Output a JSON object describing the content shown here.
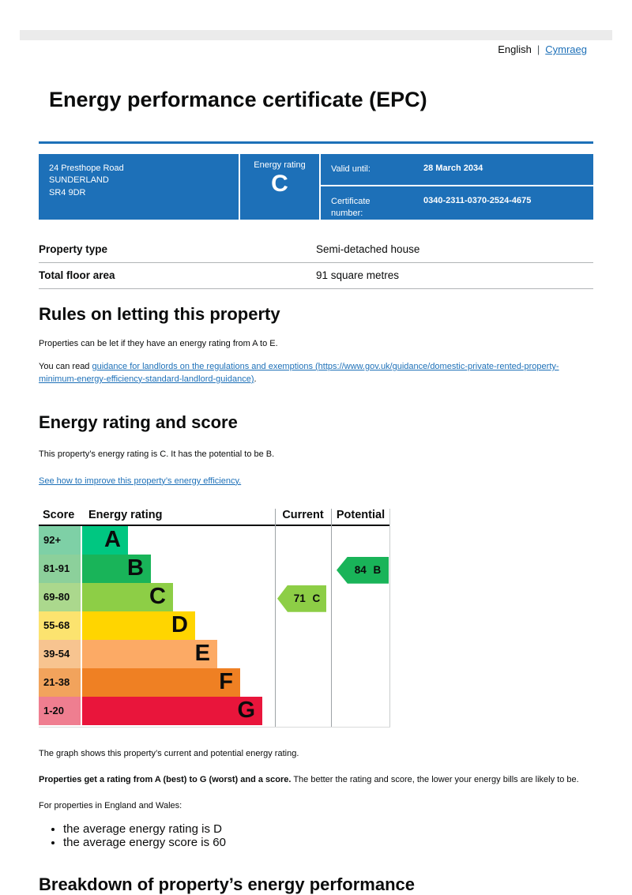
{
  "language_bar": {
    "current_language": "English",
    "separator": "|",
    "other_language_link": "Cymraeg"
  },
  "page_title": "Energy performance certificate (EPC)",
  "summary_box": {
    "address_lines": [
      "24 Presthope Road",
      "SUNDERLAND",
      "SR4 9DR"
    ],
    "energy_rating_label": "Energy rating",
    "energy_rating": "C",
    "valid_until_label": "Valid until:",
    "valid_until_value": "28 March 2034",
    "certificate_number_label": "Certificate number:",
    "certificate_number_value": "0340-2311-0370-2524-4675",
    "box_color": "#1d70b8"
  },
  "property_details": {
    "rows": [
      {
        "label": "Property type",
        "value": "Semi-detached house"
      },
      {
        "label": "Total floor area",
        "value": "91 square metres"
      }
    ]
  },
  "rules_section": {
    "heading": "Rules on letting this property",
    "paragraph": "Properties can be let if they have an energy rating from A to E.",
    "link_prefix": "You can read ",
    "link_text": "guidance for landlords on the regulations and exemptions (https://www.gov.uk/guidance/domestic-private-rented-property-minimum-energy-efficiency-standard-landlord-guidance)",
    "link_suffix": "."
  },
  "rating_section": {
    "heading": "Energy rating and score",
    "paragraph": "This property’s energy rating is C. It has the potential to be B.",
    "improve_link_text": "See how to improve this property’s energy efficiency."
  },
  "chart_data": {
    "type": "bar",
    "title": "Energy rating and score chart",
    "columns": [
      "Score",
      "Energy rating",
      "Current",
      "Potential"
    ],
    "bands": [
      {
        "score_range": "92+",
        "letter": "A",
        "band_color": "#00c781",
        "score_bg_color": "#7ed0a6"
      },
      {
        "score_range": "81-91",
        "letter": "B",
        "band_color": "#19b459",
        "score_bg_color": "#8cd09b"
      },
      {
        "score_range": "69-80",
        "letter": "C",
        "band_color": "#8dce46",
        "score_bg_color": "#abd88d"
      },
      {
        "score_range": "55-68",
        "letter": "D",
        "band_color": "#ffd500",
        "score_bg_color": "#fce36f"
      },
      {
        "score_range": "39-54",
        "letter": "E",
        "band_color": "#fcaa65",
        "score_bg_color": "#f7c490"
      },
      {
        "score_range": "21-38",
        "letter": "F",
        "band_color": "#ef8023",
        "score_bg_color": "#f2a35c"
      },
      {
        "score_range": "1-20",
        "letter": "G",
        "band_color": "#e9153b",
        "score_bg_color": "#ef7e90"
      }
    ],
    "current": {
      "score": 71,
      "letter": "C",
      "label": "71 C",
      "arrow_color": "#8dce46"
    },
    "potential": {
      "score": 84,
      "letter": "B",
      "label": "84 B",
      "arrow_color": "#19b459"
    }
  },
  "after_chart": {
    "paragraph_1": "The graph shows this property’s current and potential energy rating.",
    "paragraph_2_bold": "Properties get a rating from A (best) to G (worst) and a score.",
    "paragraph_2_rest": " The better the rating and score, the lower your energy bills are likely to be.",
    "paragraph_3": "For properties in England and Wales:",
    "bullet_items": [
      "the average energy rating is D",
      "the average energy score is 60"
    ]
  },
  "breakdown_section": {
    "heading": "Breakdown of property’s energy performance"
  }
}
